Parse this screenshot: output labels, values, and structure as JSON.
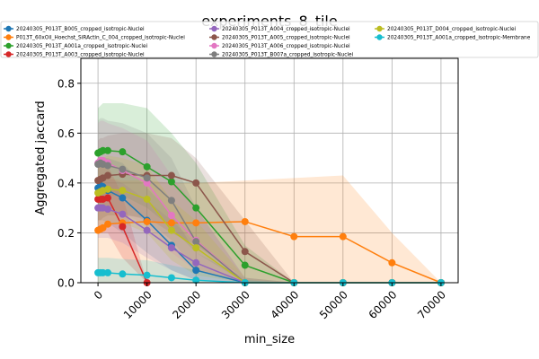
{
  "chart_data": {
    "type": "line",
    "title": "experiments_8_tile",
    "xlabel": "min_size",
    "ylabel": "Aggregated jaccard",
    "xlim": [
      -3500,
      73500
    ],
    "ylim": [
      0,
      0.9
    ],
    "xticks": [
      0,
      10000,
      20000,
      30000,
      40000,
      50000,
      60000,
      70000
    ],
    "xtick_labels": [
      "0",
      "10000",
      "20000",
      "30000",
      "40000",
      "50000",
      "60000",
      "70000"
    ],
    "yticks": [
      0.0,
      0.2,
      0.4,
      0.6,
      0.8
    ],
    "ytick_labels": [
      "0.0",
      "0.2",
      "0.4",
      "0.6",
      "0.8"
    ],
    "grid": true,
    "legend_position": "top",
    "series": [
      {
        "name": "20240305_P013T_B005_cropped_isotropic-Nuclei",
        "color": "#1f77b4",
        "x": [
          0,
          500,
          1000,
          2000,
          5000,
          10000,
          15000,
          20000,
          30000,
          40000,
          50000,
          60000,
          70000
        ],
        "y": [
          0.38,
          0.39,
          0.385,
          0.37,
          0.34,
          0.25,
          0.15,
          0.05,
          0.0,
          0.0,
          0.0,
          0.0,
          0.0
        ],
        "band_low": [
          0.25,
          0.25,
          0.25,
          0.24,
          0.2,
          0.12,
          0.05,
          0.01,
          0.0,
          0.0,
          0.0,
          0.0,
          0.0
        ],
        "band_high": [
          0.5,
          0.5,
          0.5,
          0.5,
          0.48,
          0.38,
          0.28,
          0.12,
          0.02,
          0.0,
          0.0,
          0.0,
          0.0
        ]
      },
      {
        "name": "P013T_60xOil_Hoechst_SiRActin_C_004_cropped_isotropic-Nuclei",
        "color": "#ff7f0e",
        "x": [
          0,
          500,
          1000,
          2000,
          5000,
          10000,
          15000,
          20000,
          30000,
          40000,
          50000,
          60000,
          70000
        ],
        "y": [
          0.21,
          0.215,
          0.22,
          0.235,
          0.24,
          0.245,
          0.24,
          0.24,
          0.245,
          0.185,
          0.185,
          0.08,
          0.0
        ],
        "band_low": [
          0.0,
          0.0,
          0.0,
          0.0,
          0.0,
          0.0,
          0.0,
          0.0,
          0.0,
          0.0,
          0.0,
          0.0,
          0.0
        ],
        "band_high": [
          0.43,
          0.42,
          0.42,
          0.42,
          0.41,
          0.41,
          0.4,
          0.4,
          0.41,
          0.42,
          0.43,
          0.2,
          0.0
        ]
      },
      {
        "name": "20240305_P013T_A001a_cropped_isotropic-Nuclei",
        "color": "#2ca02c",
        "x": [
          0,
          500,
          1000,
          2000,
          5000,
          10000,
          15000,
          20000,
          30000,
          40000,
          50000,
          60000,
          70000
        ],
        "y": [
          0.52,
          0.525,
          0.53,
          0.53,
          0.525,
          0.465,
          0.405,
          0.3,
          0.07,
          0.0,
          0.0,
          0.0,
          0.0
        ],
        "band_low": [
          0.34,
          0.34,
          0.35,
          0.35,
          0.35,
          0.3,
          0.22,
          0.12,
          0.0,
          0.0,
          0.0,
          0.0,
          0.0
        ],
        "band_high": [
          0.7,
          0.71,
          0.72,
          0.72,
          0.72,
          0.7,
          0.6,
          0.48,
          0.15,
          0.0,
          0.0,
          0.0,
          0.0
        ]
      },
      {
        "name": "20240305_P013T_A003_cropped_isotropic-Nuclei",
        "color": "#d62728",
        "x": [
          0,
          500,
          1000,
          2000,
          5000,
          10000
        ],
        "y": [
          0.335,
          0.335,
          0.335,
          0.34,
          0.225,
          0.0
        ],
        "band_low": [
          0.2,
          0.2,
          0.2,
          0.2,
          0.1,
          0.0
        ],
        "band_high": [
          0.47,
          0.47,
          0.47,
          0.47,
          0.35,
          0.0
        ]
      },
      {
        "name": "20240305_P013T_A004_cropped_isotropic-Nuclei",
        "color": "#9467bd",
        "x": [
          0,
          500,
          1000,
          2000,
          5000,
          10000,
          15000,
          20000,
          30000,
          40000,
          50000,
          60000,
          70000
        ],
        "y": [
          0.3,
          0.3,
          0.3,
          0.295,
          0.275,
          0.21,
          0.14,
          0.08,
          0.0,
          0.0,
          0.0,
          0.0,
          0.0
        ],
        "band_low": [
          0.18,
          0.18,
          0.18,
          0.18,
          0.16,
          0.1,
          0.05,
          0.01,
          0.0,
          0.0,
          0.0,
          0.0,
          0.0
        ],
        "band_high": [
          0.42,
          0.42,
          0.42,
          0.42,
          0.4,
          0.33,
          0.25,
          0.16,
          0.02,
          0.0,
          0.0,
          0.0,
          0.0
        ]
      },
      {
        "name": "20240305_P013T_A005_cropped_isotropic-Nuclei",
        "color": "#8c564b",
        "x": [
          0,
          500,
          1000,
          2000,
          5000,
          10000,
          15000,
          20000,
          30000,
          40000,
          50000,
          60000,
          70000
        ],
        "y": [
          0.41,
          0.415,
          0.42,
          0.43,
          0.435,
          0.43,
          0.43,
          0.4,
          0.125,
          0.0,
          0.0,
          0.0,
          0.0
        ],
        "band_low": [
          0.25,
          0.25,
          0.26,
          0.27,
          0.27,
          0.26,
          0.2,
          0.15,
          0.02,
          0.0,
          0.0,
          0.0,
          0.0
        ],
        "band_high": [
          0.57,
          0.58,
          0.58,
          0.59,
          0.6,
          0.6,
          0.58,
          0.5,
          0.25,
          0.0,
          0.0,
          0.0,
          0.0
        ]
      },
      {
        "name": "20240305_P013T_A006_cropped_isotropic-Nuclei",
        "color": "#e377c2",
        "x": [
          0,
          500,
          1000,
          2000,
          5000,
          10000,
          15000,
          20000,
          30000,
          40000,
          50000,
          60000,
          70000
        ],
        "y": [
          0.48,
          0.49,
          0.49,
          0.48,
          0.45,
          0.4,
          0.27,
          0.17,
          0.0,
          0.0,
          0.0,
          0.0,
          0.0
        ],
        "band_low": [
          0.32,
          0.32,
          0.32,
          0.31,
          0.28,
          0.23,
          0.12,
          0.05,
          0.0,
          0.0,
          0.0,
          0.0,
          0.0
        ],
        "band_high": [
          0.64,
          0.65,
          0.65,
          0.64,
          0.62,
          0.57,
          0.43,
          0.3,
          0.02,
          0.0,
          0.0,
          0.0,
          0.0
        ]
      },
      {
        "name": "20240305_P013T_B007a_cropped_isotropic-Nuclei",
        "color": "#7f7f7f",
        "x": [
          0,
          500,
          1000,
          2000,
          5000,
          10000,
          15000,
          20000,
          30000,
          40000,
          50000,
          60000,
          70000
        ],
        "y": [
          0.475,
          0.48,
          0.475,
          0.47,
          0.455,
          0.42,
          0.33,
          0.165,
          0.0,
          0.0,
          0.0,
          0.0,
          0.0
        ],
        "band_low": [
          0.3,
          0.3,
          0.3,
          0.3,
          0.28,
          0.25,
          0.17,
          0.05,
          0.0,
          0.0,
          0.0,
          0.0,
          0.0
        ],
        "band_high": [
          0.65,
          0.66,
          0.66,
          0.65,
          0.64,
          0.6,
          0.5,
          0.3,
          0.02,
          0.0,
          0.0,
          0.0,
          0.0
        ]
      },
      {
        "name": "20240305_P013T_D004_cropped_isotropic-Nuclei",
        "color": "#bcbd22",
        "x": [
          0,
          500,
          1000,
          2000,
          5000,
          10000,
          15000,
          20000,
          30000,
          40000,
          50000,
          60000,
          70000
        ],
        "y": [
          0.36,
          0.365,
          0.37,
          0.375,
          0.37,
          0.335,
          0.21,
          0.14,
          0.0,
          0.0,
          0.0,
          0.0,
          0.0
        ],
        "band_low": [
          0.23,
          0.23,
          0.23,
          0.24,
          0.24,
          0.2,
          0.09,
          0.03,
          0.0,
          0.0,
          0.0,
          0.0,
          0.0
        ],
        "band_high": [
          0.49,
          0.5,
          0.5,
          0.51,
          0.5,
          0.47,
          0.33,
          0.25,
          0.02,
          0.0,
          0.0,
          0.0,
          0.0
        ]
      },
      {
        "name": "20240305_P013T_A001a_cropped_isotropic-Membrane",
        "color": "#17becf",
        "x": [
          0,
          500,
          1000,
          2000,
          5000,
          10000,
          15000,
          20000,
          30000,
          40000,
          50000,
          60000,
          70000
        ],
        "y": [
          0.04,
          0.04,
          0.04,
          0.04,
          0.035,
          0.03,
          0.02,
          0.01,
          0.0,
          0.0,
          0.0,
          0.0,
          0.0
        ],
        "band_low": [
          0.0,
          0.0,
          0.0,
          0.0,
          0.0,
          0.0,
          0.0,
          0.0,
          0.0,
          0.0,
          0.0,
          0.0,
          0.0
        ],
        "band_high": [
          0.1,
          0.1,
          0.1,
          0.1,
          0.095,
          0.09,
          0.07,
          0.05,
          0.01,
          0.0,
          0.0,
          0.0,
          0.0
        ]
      }
    ]
  }
}
